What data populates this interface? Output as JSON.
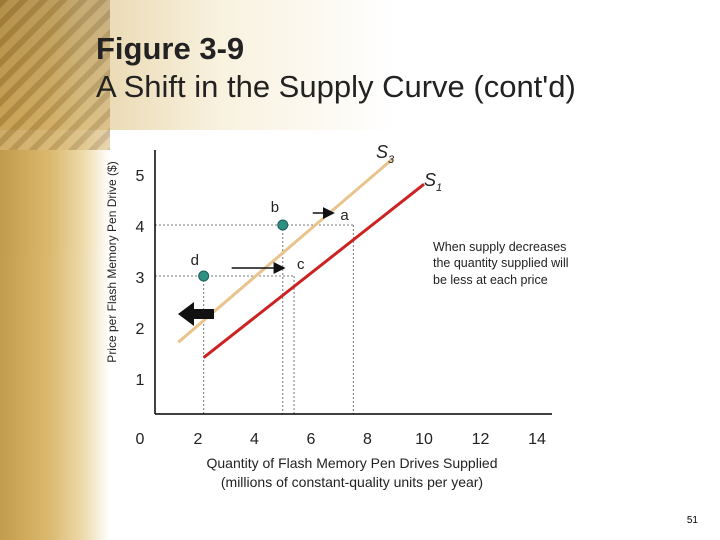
{
  "slide": {
    "title_line1": "Figure 3-9",
    "title_line2": "A Shift in the Supply Curve (cont'd)",
    "page_number": "51"
  },
  "colors": {
    "s3": "#e8c48c",
    "s1": "#cc2222",
    "points": "#2f8f83",
    "dotted": "#777777",
    "arrow": "#111111"
  },
  "chart_data": {
    "type": "line",
    "title": "",
    "xlabel": "Quantity of Flash Memory Pen Drives Supplied",
    "xlabel_line2": "(millions of constant-quality units per year)",
    "ylabel": "Price per Flash Memory Pen Drive ($)",
    "xlim": [
      0,
      14
    ],
    "ylim": [
      0,
      5.5
    ],
    "x_ticks": [
      2,
      4,
      6,
      8,
      10,
      12,
      14
    ],
    "y_ticks": [
      1,
      2,
      3,
      4,
      5
    ],
    "origin_label": "0",
    "grid": false,
    "series": [
      {
        "name": "S3",
        "label_main": "S",
        "label_sub": "3",
        "x": [
          1.3,
          8.9
        ],
        "y": [
          1.7,
          5.3
        ],
        "color_key": "s3"
      },
      {
        "name": "S1",
        "label_main": "S",
        "label_sub": "1",
        "x": [
          2.2,
          10.0
        ],
        "y": [
          1.4,
          4.8
        ],
        "color_key": "s1"
      }
    ],
    "points": [
      {
        "label": "b",
        "x": 5,
        "y": 4
      },
      {
        "label": "a",
        "x": 7.5,
        "y": 4
      },
      {
        "label": "d",
        "x": 2.2,
        "y": 3
      },
      {
        "label": "c",
        "x": 5.4,
        "y": 3
      }
    ],
    "annotation": {
      "lines": [
        "When supply decreases",
        "the quantity supplied will",
        "be less at each price"
      ]
    }
  }
}
